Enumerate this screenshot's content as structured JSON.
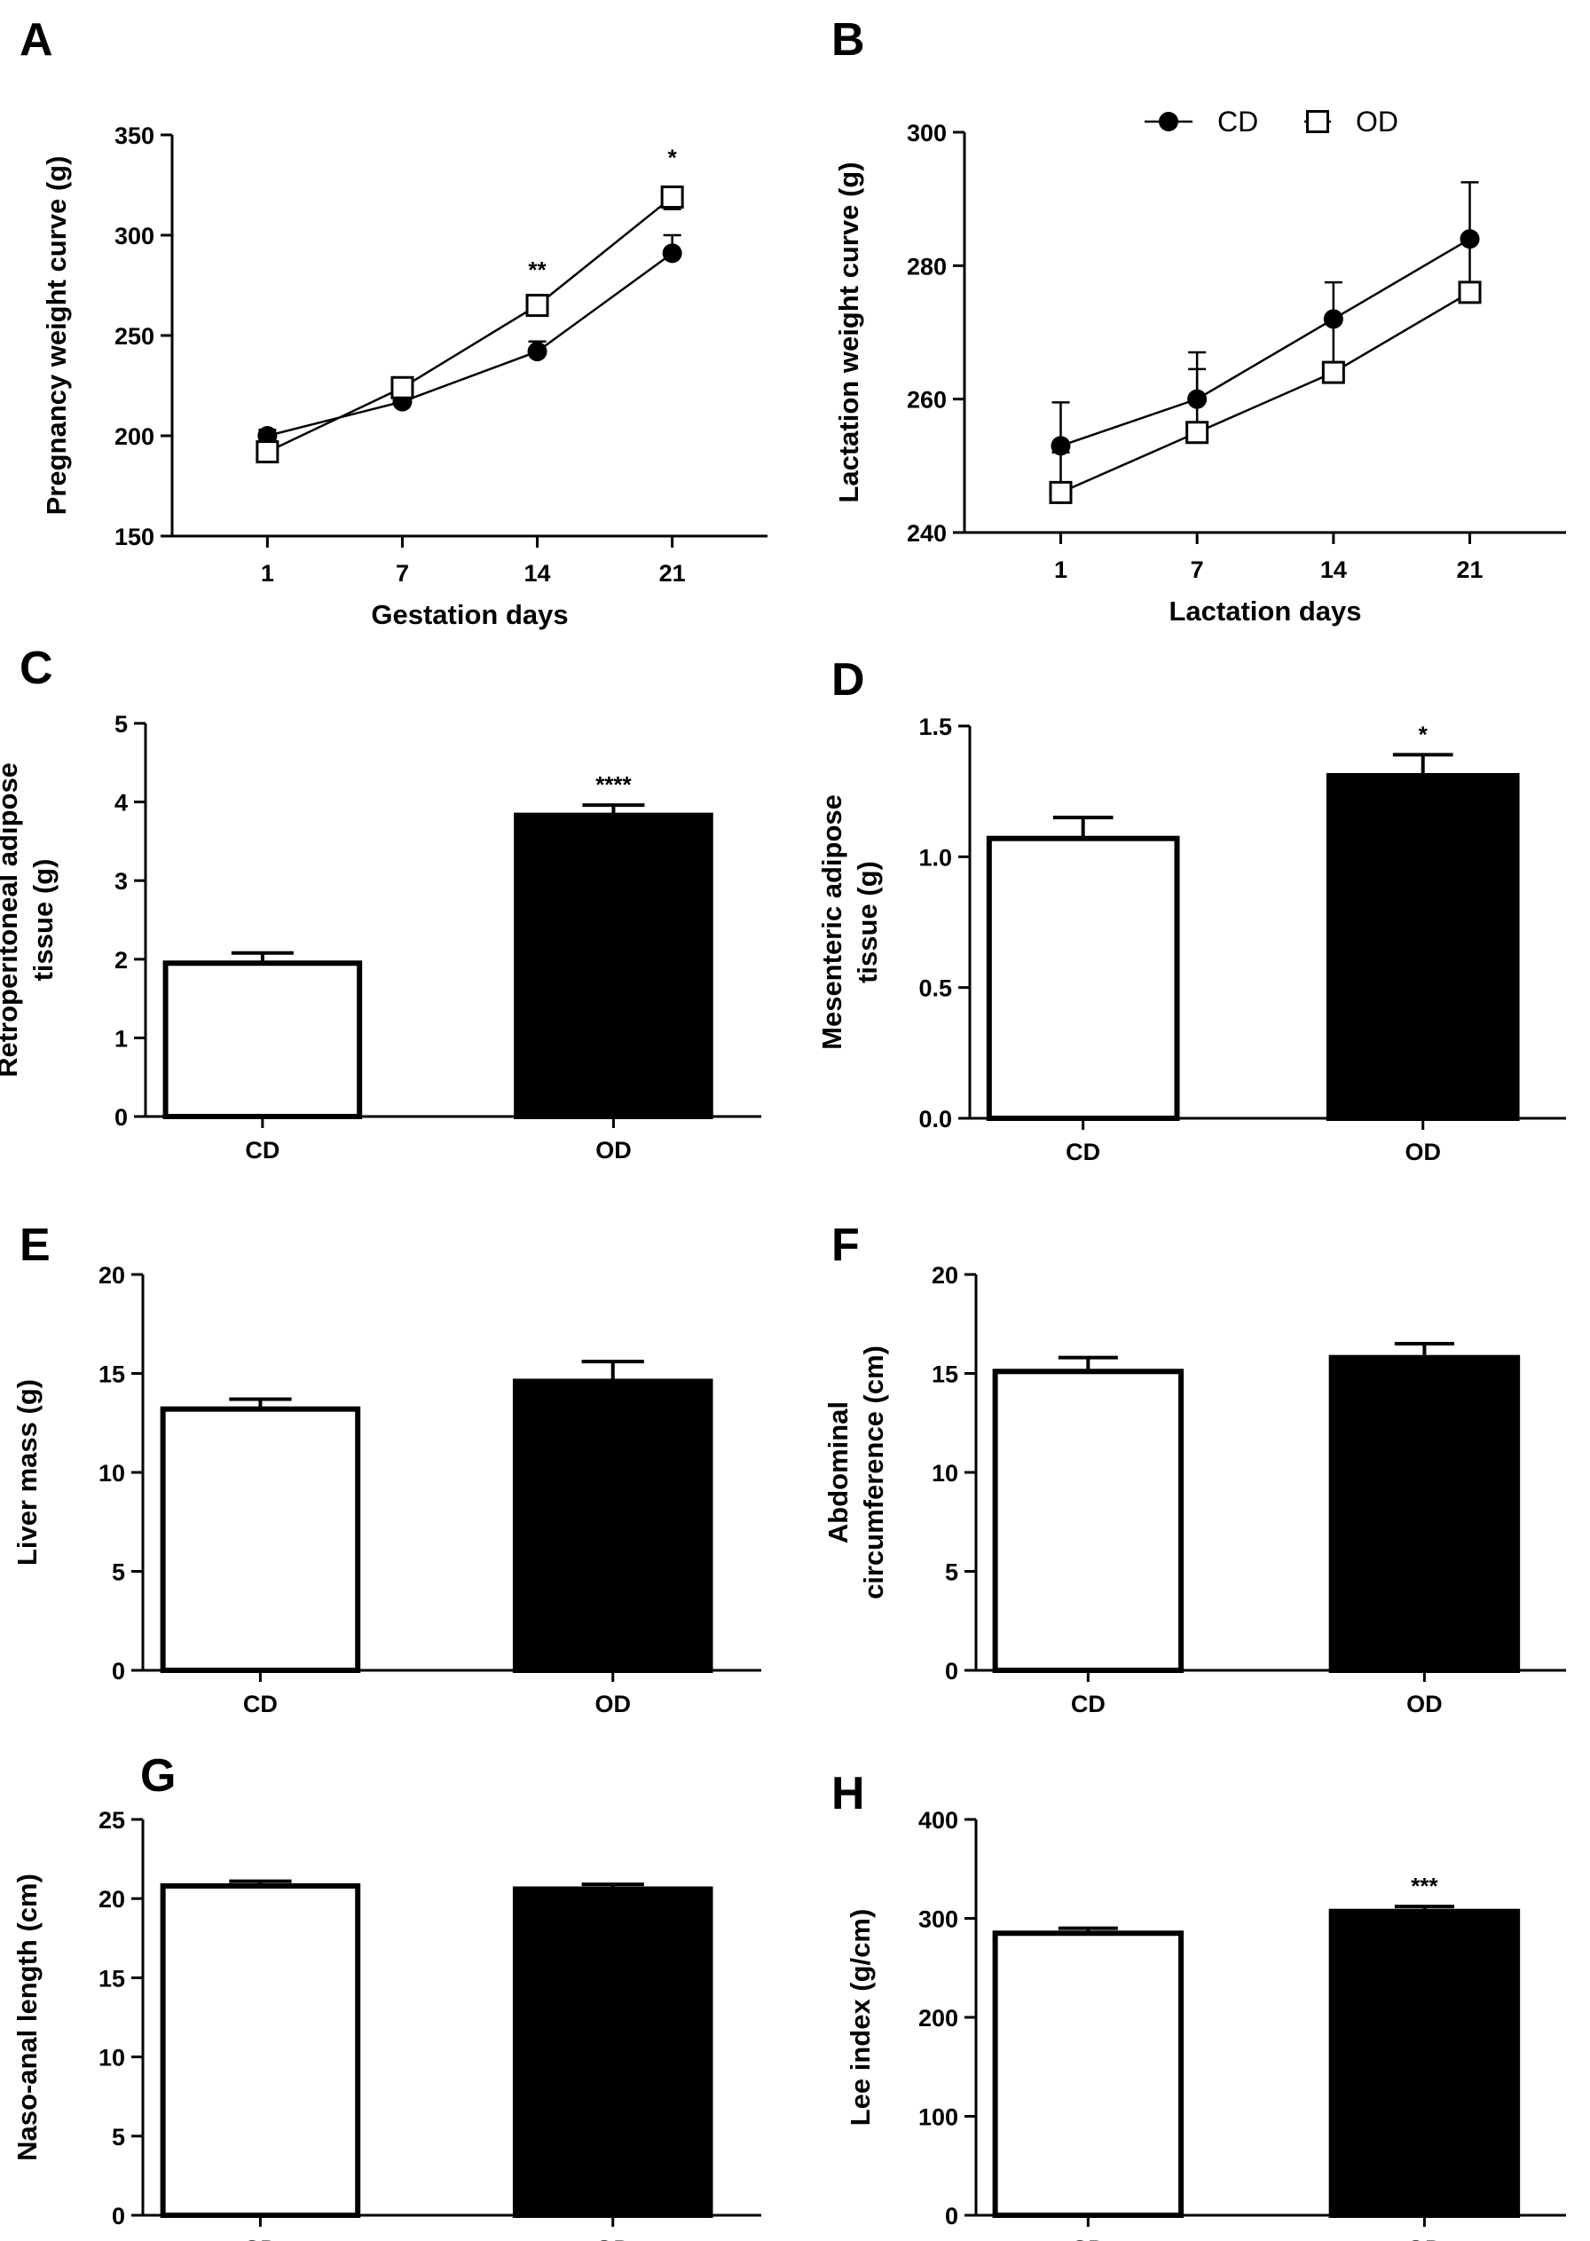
{
  "figure_title": "Maternal weight curves and adiposity measures, CD vs OD",
  "legend": {
    "items": [
      {
        "label": "CD",
        "marker": "filled-circle"
      },
      {
        "label": "OD",
        "marker": "open-square"
      }
    ]
  },
  "colors": {
    "ink": "#000000",
    "CD": "#ffffff",
    "OD": "#000000",
    "background": "#ffffff"
  },
  "chart_data": [
    {
      "panel": "A",
      "type": "line",
      "xlabel": "Gestation days",
      "ylabel": "Pregnancy weight curve (g)",
      "categories": [
        "1",
        "7",
        "14",
        "21"
      ],
      "ylim": [
        150,
        350
      ],
      "yticks": [
        150,
        200,
        250,
        300,
        350
      ],
      "series": [
        {
          "name": "CD",
          "marker": "circle",
          "values": [
            200,
            217,
            242,
            291
          ],
          "errors": [
            3,
            3,
            5,
            9
          ]
        },
        {
          "name": "OD",
          "marker": "square",
          "values": [
            192,
            224,
            265,
            319
          ],
          "errors": [
            3,
            4,
            4,
            6
          ]
        }
      ],
      "annotations": [
        {
          "category": "14",
          "text": "**"
        },
        {
          "category": "21",
          "text": "*"
        }
      ]
    },
    {
      "panel": "B",
      "type": "line",
      "xlabel": "Lactation days",
      "ylabel": "Lactation weight curve (g)",
      "categories": [
        "1",
        "7",
        "14",
        "21"
      ],
      "ylim": [
        240,
        300
      ],
      "yticks": [
        240,
        260,
        280,
        300
      ],
      "series": [
        {
          "name": "CD",
          "marker": "circle",
          "values": [
            253,
            260,
            272,
            284
          ],
          "errors": [
            6.5,
            7,
            5.5,
            8.5
          ]
        },
        {
          "name": "OD",
          "marker": "square",
          "values": [
            246,
            255,
            264,
            276
          ],
          "errors": [
            6,
            9.5,
            7.5,
            7.5
          ]
        }
      ],
      "annotations": []
    },
    {
      "panel": "C",
      "type": "bar",
      "xlabel": "",
      "ylabel": "Retroperitoneal adipose tissue (g)",
      "ylabel_lines": [
        "Retroperitoneal adipose",
        "tissue (g)"
      ],
      "categories": [
        "CD",
        "OD"
      ],
      "values": [
        1.95,
        3.83
      ],
      "errors": [
        0.13,
        0.13
      ],
      "ylim": [
        0,
        5
      ],
      "yticks": [
        "0",
        "1",
        "2",
        "3",
        "4",
        "5"
      ],
      "annotations": [
        {
          "category": "OD",
          "text": "****"
        }
      ]
    },
    {
      "panel": "D",
      "type": "bar",
      "xlabel": "",
      "ylabel": "Mesenteric adipose tissue (g)",
      "ylabel_lines": [
        "Mesenteric adipose",
        "tissue (g)"
      ],
      "categories": [
        "CD",
        "OD"
      ],
      "values": [
        1.07,
        1.31
      ],
      "errors": [
        0.08,
        0.08
      ],
      "ylim": [
        0,
        1.5
      ],
      "yticks": [
        "0.0",
        "0.5",
        "1.0",
        "1.5"
      ],
      "annotations": [
        {
          "category": "OD",
          "text": "*"
        }
      ]
    },
    {
      "panel": "E",
      "type": "bar",
      "xlabel": "",
      "ylabel": "Liver mass (g)",
      "ylabel_lines": [
        "Liver mass (g)"
      ],
      "categories": [
        "CD",
        "OD"
      ],
      "values": [
        13.2,
        14.6
      ],
      "errors": [
        0.5,
        1.0
      ],
      "ylim": [
        0,
        20
      ],
      "yticks": [
        "0",
        "5",
        "10",
        "15",
        "20"
      ],
      "annotations": []
    },
    {
      "panel": "F",
      "type": "bar",
      "xlabel": "",
      "ylabel": "Abdominal circumference (cm)",
      "ylabel_lines": [
        "Abdominal",
        "circumference (cm)"
      ],
      "categories": [
        "CD",
        "OD"
      ],
      "values": [
        15.1,
        15.8
      ],
      "errors": [
        0.7,
        0.7
      ],
      "ylim": [
        0,
        20
      ],
      "yticks": [
        "0",
        "5",
        "10",
        "15",
        "20"
      ],
      "annotations": []
    },
    {
      "panel": "G",
      "type": "bar",
      "xlabel": "",
      "ylabel": "Naso-anal length (cm)",
      "ylabel_lines": [
        "Naso-anal length (cm)"
      ],
      "categories": [
        "CD",
        "OD"
      ],
      "values": [
        20.8,
        20.6
      ],
      "errors": [
        0.3,
        0.3
      ],
      "ylim": [
        0,
        25
      ],
      "yticks": [
        "0",
        "5",
        "10",
        "15",
        "20",
        "25"
      ],
      "annotations": []
    },
    {
      "panel": "H",
      "type": "bar",
      "xlabel": "",
      "ylabel": "Lee index (g/cm)",
      "ylabel_lines": [
        "Lee index (g/cm)"
      ],
      "categories": [
        "CD",
        "OD"
      ],
      "values": [
        285,
        307
      ],
      "errors": [
        5,
        5
      ],
      "ylim": [
        0,
        400
      ],
      "yticks": [
        "0",
        "100",
        "200",
        "300",
        "400"
      ],
      "annotations": [
        {
          "category": "OD",
          "text": "***"
        }
      ]
    }
  ]
}
